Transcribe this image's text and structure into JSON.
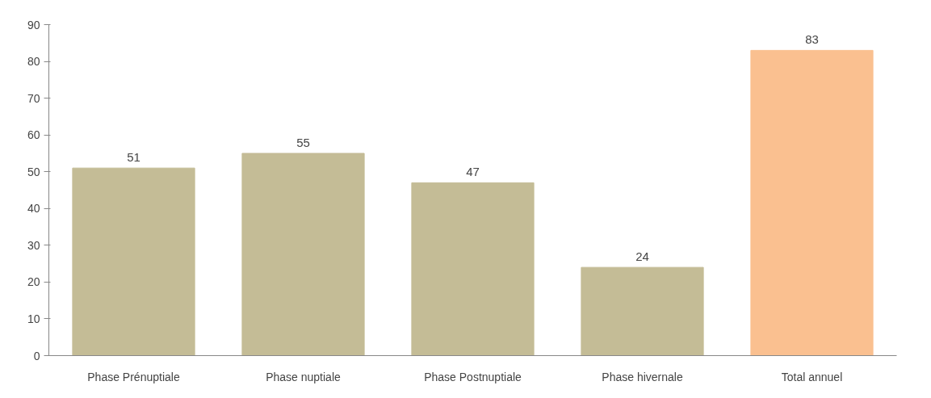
{
  "chart_data": {
    "type": "bar",
    "categories": [
      "Phase Prénuptiale",
      "Phase nuptiale",
      "Phase Postnuptiale",
      "Phase hivernale",
      "Total annuel"
    ],
    "values": [
      51,
      55,
      47,
      24,
      83
    ],
    "colors": [
      "#c4bc96",
      "#c4bc96",
      "#c4bc96",
      "#c4bc96",
      "#fac090"
    ],
    "ylim": [
      0,
      90
    ],
    "yticks": [
      0,
      10,
      20,
      30,
      40,
      50,
      60,
      70,
      80,
      90
    ],
    "grid": false,
    "data_labels": true
  }
}
